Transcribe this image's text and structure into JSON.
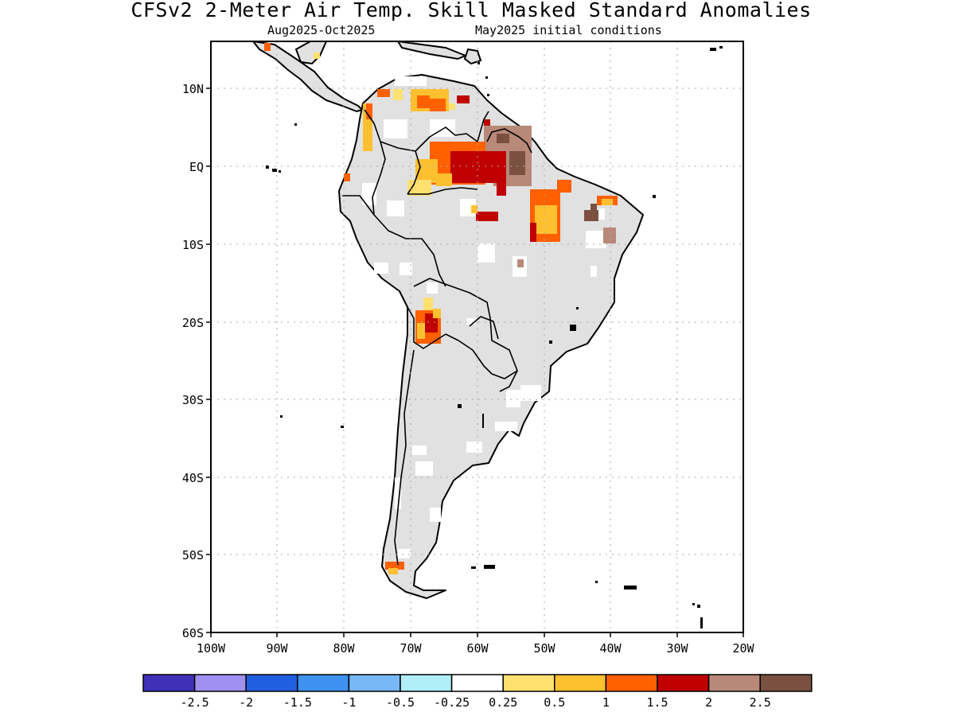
{
  "header": {
    "title": "CFSv2 2-Meter Air Temp. Skill Masked Standard Anomalies",
    "period": "Aug2025-Oct2025",
    "init": "May2025 initial conditions"
  },
  "map": {
    "region": "South America",
    "lon_ticks": [
      "100W",
      "90W",
      "80W",
      "70W",
      "60W",
      "50W",
      "40W",
      "30W",
      "20W"
    ],
    "lat_ticks": [
      "10N",
      "EQ",
      "10S",
      "20S",
      "30S",
      "40S",
      "50S",
      "60S"
    ],
    "grid": "dotted",
    "land_color": "#e1e1e1"
  },
  "legend": {
    "colors": [
      "#4030b8",
      "#a090f0",
      "#2060e0",
      "#4090f0",
      "#78b8f8",
      "#b0eef8",
      "#ffffff",
      "#ffe070",
      "#ffc030",
      "#ff6000",
      "#c00000",
      "#b88878",
      "#7a5040"
    ],
    "labels": [
      "-2.5",
      "-2",
      "-1.5",
      "-1",
      "-0.5",
      "-0.25",
      "0.25",
      "0.5",
      "1",
      "1.5",
      "2",
      "2.5"
    ]
  }
}
